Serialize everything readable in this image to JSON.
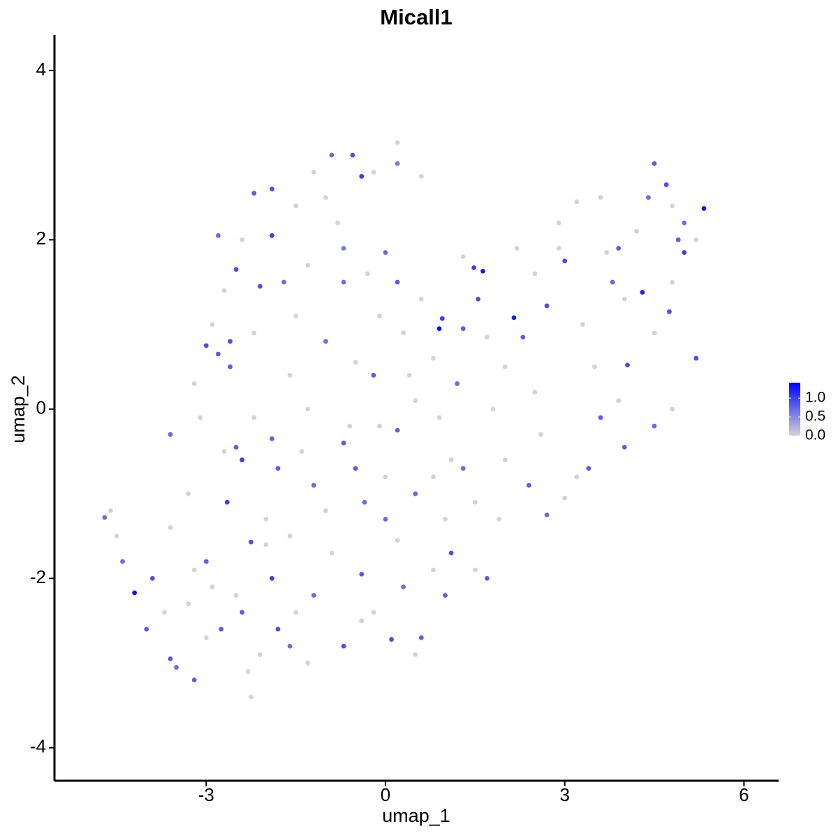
{
  "chart_data": {
    "type": "scatter",
    "title": "Micall1",
    "xlabel": "umap_1",
    "ylabel": "umap_2",
    "xlim": [
      -5.54,
      6.58
    ],
    "xticks": [
      -3,
      0,
      3,
      6
    ],
    "ylim": [
      -4.39,
      4.42
    ],
    "yticks": [
      -4,
      -2,
      0,
      2,
      4
    ],
    "color_low": "#d3d3d3",
    "color_high": "#0000ff",
    "colorlim": [
      0,
      1.41
    ],
    "colorbar_ticks": [
      {
        "value": 0,
        "label": "0.0"
      },
      {
        "value": 0.5,
        "label": "0.5"
      },
      {
        "value": 1,
        "label": "1.0"
      }
    ],
    "x": [
      -2.2,
      -1.9,
      -1.5,
      -1.2,
      -0.9,
      -0.55,
      -0.2,
      0.2,
      0.2,
      0.6,
      -0.4,
      -1.0,
      -2.4,
      -2.8,
      -1.9,
      -2.5,
      -2.7,
      -2.1,
      -1.7,
      -1.3,
      -0.7,
      -0.7,
      -0.3,
      0.0,
      -2.9,
      -2.6,
      -3.0,
      -2.8,
      -2.2,
      -1.6,
      -1.0,
      -0.5,
      -0.2,
      0.3,
      0.2,
      0.6,
      -3.2,
      -2.6,
      -3.6,
      -3.1,
      -2.5,
      -2.4,
      -2.2,
      -1.9,
      -1.8,
      -2.65,
      -3.3,
      -3.6,
      -2.0,
      -1.2,
      -1.6,
      -0.7,
      -0.5,
      -0.35,
      -0.1,
      0.0,
      -0.9,
      -2.25,
      -1.4,
      -4.7,
      -4.6,
      -4.5,
      -4.4,
      -4.2,
      -3.9,
      -4.0,
      -3.7,
      -3.6,
      -3.5,
      -3.3,
      -3.2,
      -3.0,
      -2.9,
      -2.75,
      -2.5,
      -2.4,
      -2.3,
      -2.25,
      -2.1,
      -1.9,
      -1.8,
      -1.5,
      -1.3,
      -1.2,
      -3.0,
      -2.0,
      -1.6,
      0.1,
      0.6,
      -0.7,
      -0.2,
      0.3,
      -0.4,
      0.8,
      1.1,
      1.0,
      0.2,
      0.5,
      0.8,
      1.1,
      1.3,
      0.2,
      0.5,
      0.9,
      1.2,
      0.8,
      0.9,
      0.95,
      1.3,
      1.48,
      1.63,
      1.55,
      1.7,
      2.15,
      2.0,
      1.8,
      1.5,
      1.9,
      1.7,
      0.5,
      1.5,
      2.3,
      2.7,
      2.5,
      2.9,
      3.0,
      2.9,
      3.2,
      3.6,
      3.7,
      3.9,
      3.8,
      4.0,
      4.3,
      4.2,
      4.4,
      4.5,
      4.7,
      4.8,
      5.0,
      5.0,
      5.33,
      5.2,
      4.9,
      4.75,
      4.5,
      4.05,
      5.2,
      4.8,
      4.5,
      3.6,
      3.4,
      3.0,
      3.2,
      2.7,
      2.4,
      2.0,
      3.5,
      3.3,
      2.5,
      4.8,
      4.0,
      3.9,
      -1.3,
      -0.6,
      -1.0,
      -2.7,
      -3.2,
      -0.8,
      -1.5,
      -0.1,
      0.4,
      1.0,
      0.0,
      -0.4,
      2.6,
      1.3,
      2.2
    ],
    "y": [
      2.55,
      2.6,
      2.4,
      2.8,
      3.0,
      3.0,
      2.8,
      3.15,
      2.9,
      2.75,
      2.75,
      2.5,
      2.0,
      2.05,
      2.05,
      1.65,
      1.4,
      1.45,
      1.5,
      1.7,
      1.9,
      1.5,
      1.6,
      1.85,
      1.0,
      0.8,
      0.75,
      0.65,
      0.9,
      0.4,
      0.8,
      0.55,
      0.4,
      0.9,
      1.5,
      1.3,
      0.3,
      0.5,
      -0.3,
      -0.1,
      -0.45,
      -0.6,
      -0.1,
      -0.35,
      -0.7,
      -1.1,
      -1.0,
      -1.4,
      -1.3,
      -0.9,
      -1.5,
      -0.4,
      -0.7,
      -1.1,
      -0.2,
      -1.3,
      -1.7,
      -1.57,
      -0.5,
      -1.28,
      -1.2,
      -1.5,
      -1.8,
      -2.17,
      -2.0,
      -2.6,
      -2.4,
      -2.95,
      -3.05,
      -2.3,
      -3.2,
      -1.8,
      -2.1,
      -2.6,
      -2.2,
      -2.4,
      -3.1,
      -3.4,
      -2.9,
      -2.0,
      -2.6,
      -2.4,
      -3.0,
      -2.2,
      -2.7,
      -1.6,
      -2.8,
      -2.72,
      -2.7,
      -2.8,
      -2.4,
      -2.1,
      -1.95,
      -1.9,
      -1.7,
      -2.2,
      -1.55,
      -1.0,
      -0.8,
      -0.6,
      -0.7,
      -0.25,
      0.1,
      -0.1,
      0.3,
      0.6,
      0.95,
      1.07,
      0.95,
      1.67,
      1.63,
      1.3,
      0.85,
      1.08,
      0.5,
      0.0,
      -1.1,
      -1.3,
      -2.0,
      -2.9,
      -1.9,
      0.85,
      1.22,
      1.6,
      1.9,
      1.75,
      2.2,
      2.45,
      2.5,
      1.85,
      1.9,
      1.5,
      1.3,
      1.38,
      2.1,
      2.5,
      2.9,
      2.65,
      2.4,
      1.85,
      2.2,
      2.37,
      2.0,
      2.0,
      1.15,
      0.9,
      0.52,
      0.6,
      0.0,
      -0.2,
      -0.1,
      -0.7,
      -1.05,
      -0.8,
      -1.25,
      -0.9,
      -0.6,
      0.5,
      1.0,
      0.2,
      1.5,
      -0.45,
      0.1,
      0.0,
      -0.2,
      -1.2,
      -0.5,
      -1.9,
      2.2,
      1.1,
      1.1,
      0.4,
      -1.3,
      -0.8,
      -2.5,
      -0.3,
      1.8,
      1.9
    ],
    "values": [
      0.8,
      0.9,
      0,
      0,
      0.7,
      0.9,
      0,
      0,
      0.6,
      0,
      1.0,
      0,
      0,
      0.7,
      1.0,
      0.9,
      0,
      0.9,
      0.7,
      0,
      0.6,
      0.7,
      0,
      0.7,
      0,
      0.9,
      0.9,
      0.8,
      0,
      0,
      0.7,
      0,
      0.8,
      0,
      0.8,
      0,
      0,
      0.8,
      0.7,
      0,
      0.8,
      1.0,
      0,
      0.8,
      0.8,
      1.0,
      0,
      0,
      0,
      0.7,
      0,
      0.8,
      0.8,
      0.7,
      0,
      0.7,
      0,
      0.9,
      0,
      0.7,
      0,
      0,
      0.7,
      1.3,
      0.9,
      0.8,
      0,
      0.8,
      0.7,
      0,
      0.8,
      0.8,
      0,
      0.8,
      0,
      0.8,
      0,
      0,
      0,
      1.0,
      0.9,
      0,
      0,
      0.7,
      0,
      0,
      0.7,
      0.9,
      0.8,
      0.9,
      0,
      0.7,
      0.8,
      0,
      0.9,
      0.8,
      0,
      0.7,
      0,
      0,
      0.7,
      0.8,
      0,
      0,
      0.7,
      0,
      1.3,
      1.0,
      0.8,
      1.0,
      1.25,
      0.9,
      0,
      1.2,
      0,
      0,
      0,
      0,
      0.8,
      0,
      0,
      0.8,
      0.9,
      0,
      0,
      0.9,
      0,
      0,
      0,
      0,
      0.8,
      0.7,
      0,
      1.2,
      0,
      0.7,
      0.8,
      0.9,
      0,
      1.0,
      0.7,
      1.3,
      0,
      0.8,
      0.9,
      0,
      0.9,
      0.9,
      0,
      0.7,
      0.8,
      0.8,
      0,
      0,
      0.7,
      0.8,
      0,
      0,
      0,
      0,
      0,
      0.8,
      0,
      0,
      0,
      0,
      0,
      0,
      0,
      0,
      0,
      0,
      0,
      0,
      0,
      0,
      0,
      0
    ]
  }
}
